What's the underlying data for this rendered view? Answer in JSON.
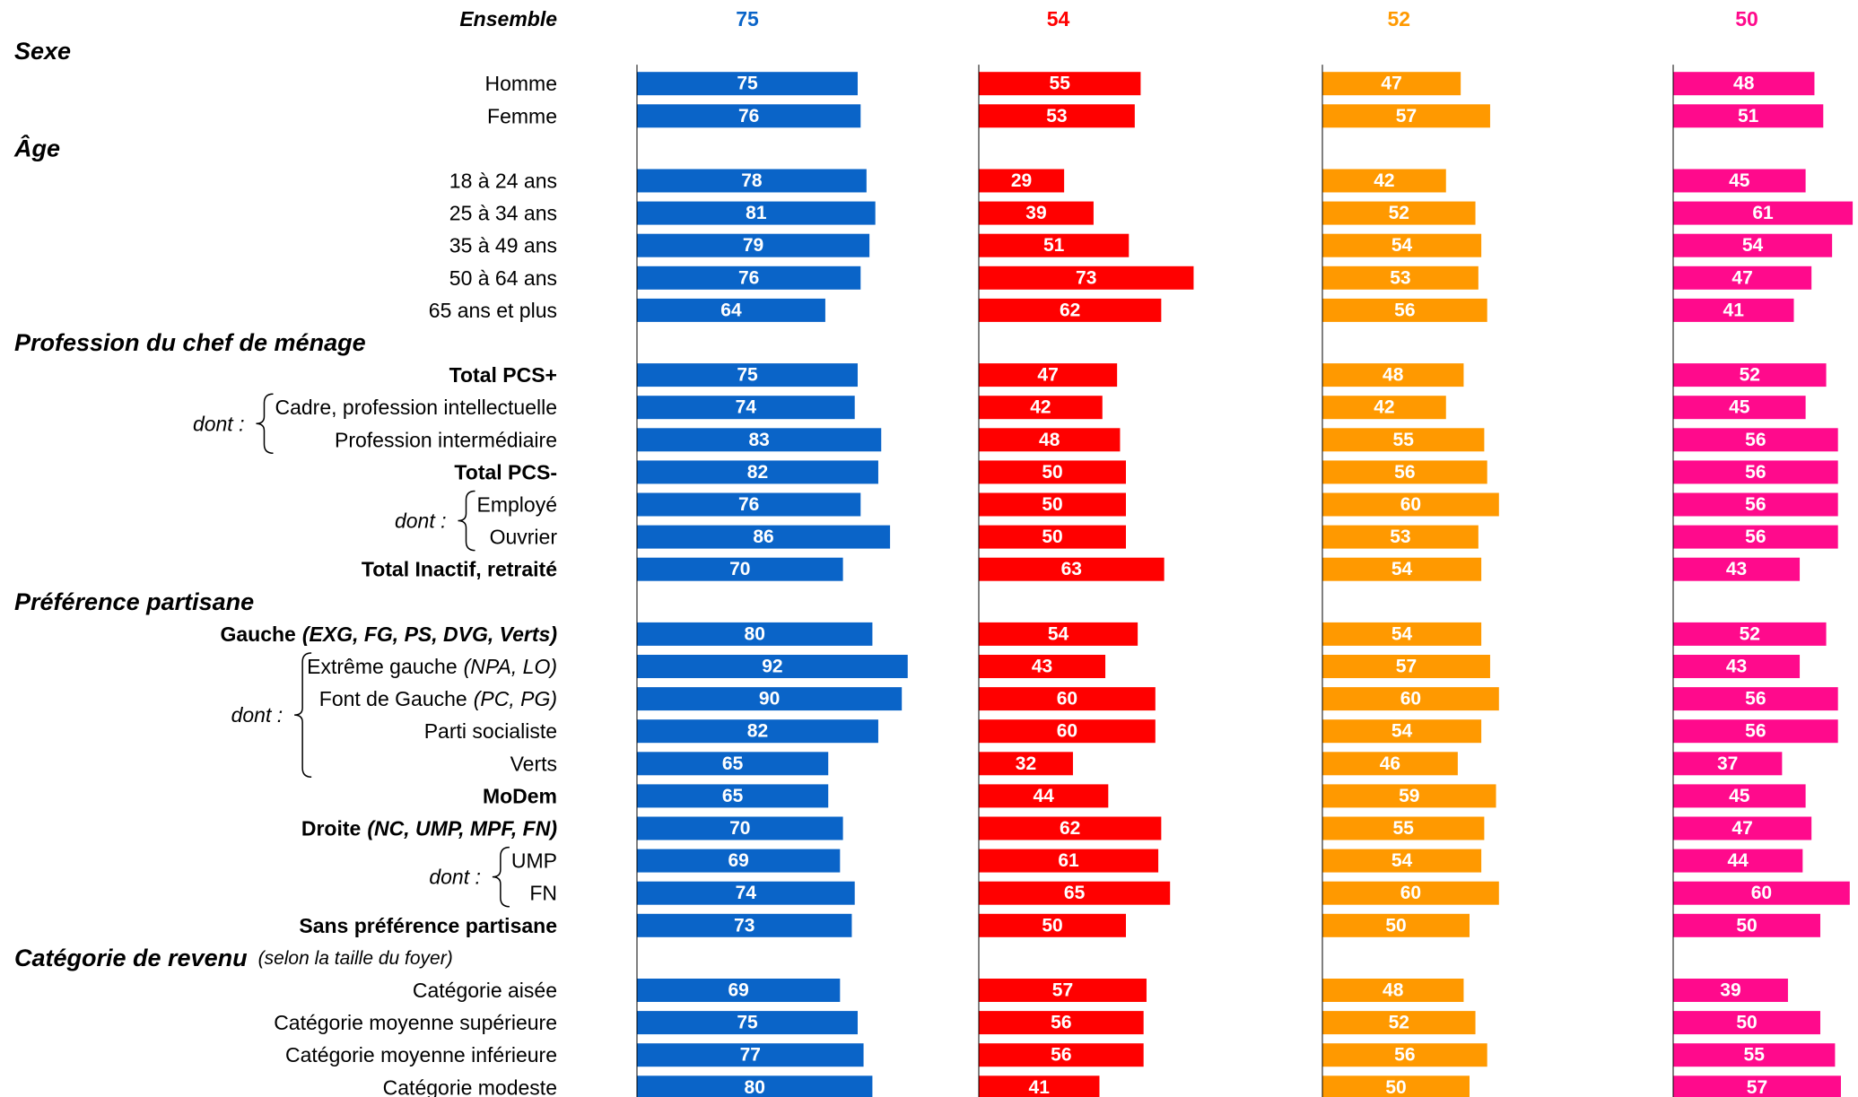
{
  "chart_data": {
    "type": "bar",
    "orientation": "horizontal",
    "total_label": "Ensemble",
    "groups": [
      {
        "title": "Sexe",
        "items": [
          {
            "label": "Homme"
          },
          {
            "label": "Femme"
          }
        ]
      },
      {
        "title": "Âge",
        "items": [
          {
            "label": "18 à 24 ans"
          },
          {
            "label": "25 à 34 ans"
          },
          {
            "label": "35 à 49 ans"
          },
          {
            "label": "50 à 64 ans"
          },
          {
            "label": "65 ans et plus"
          }
        ]
      },
      {
        "title": "Profession du chef de ménage",
        "items": [
          {
            "label": "Total PCS+",
            "bold": true
          },
          {
            "bracket": "dont :",
            "items": [
              {
                "label": "Cadre, profession intellectuelle"
              },
              {
                "label": "Profession intermédiaire"
              }
            ]
          },
          {
            "label": "Total PCS-",
            "bold": true
          },
          {
            "bracket": "dont :",
            "items": [
              {
                "label": "Employé"
              },
              {
                "label": "Ouvrier"
              }
            ]
          },
          {
            "label": "Total Inactif, retraité",
            "bold": true
          }
        ]
      },
      {
        "title": "Préférence partisane",
        "items": [
          {
            "label": "Gauche",
            "note": "(EXG, FG, PS, DVG, Verts)",
            "bold": true
          },
          {
            "bracket": "dont :",
            "items": [
              {
                "label": "Extrême gauche",
                "note": "(NPA, LO)"
              },
              {
                "label": "Font de Gauche",
                "note": "(PC, PG)"
              },
              {
                "label": "Parti socialiste"
              },
              {
                "label": "Verts"
              }
            ]
          },
          {
            "label": "MoDem",
            "bold": true
          },
          {
            "label": "Droite",
            "note": "(NC, UMP, MPF, FN)",
            "bold": true
          },
          {
            "bracket": "dont :",
            "items": [
              {
                "label": "UMP"
              },
              {
                "label": "FN"
              }
            ]
          },
          {
            "label": "Sans préférence partisane",
            "bold": true
          }
        ]
      },
      {
        "title": "Catégorie de revenu",
        "subtitle": "(selon la taille du foyer)",
        "items": [
          {
            "label": "Catégorie aisée"
          },
          {
            "label": "Catégorie moyenne supérieure"
          },
          {
            "label": "Catégorie moyenne inférieure"
          },
          {
            "label": "Catégorie modeste"
          }
        ]
      }
    ],
    "series": [
      {
        "color": "#0a64c8",
        "total": 75,
        "values": [
          75,
          76,
          78,
          81,
          79,
          76,
          64,
          75,
          74,
          83,
          82,
          76,
          86,
          70,
          80,
          92,
          90,
          82,
          65,
          65,
          70,
          69,
          74,
          73,
          69,
          75,
          77,
          80
        ]
      },
      {
        "color": "#ff0000",
        "total": 54,
        "values": [
          55,
          53,
          29,
          39,
          51,
          73,
          62,
          47,
          42,
          48,
          50,
          50,
          50,
          63,
          54,
          43,
          60,
          60,
          32,
          44,
          62,
          61,
          65,
          50,
          57,
          56,
          56,
          41
        ]
      },
      {
        "color": "#ff9900",
        "total": 52,
        "values": [
          47,
          57,
          42,
          52,
          54,
          53,
          56,
          48,
          42,
          55,
          56,
          60,
          53,
          54,
          54,
          57,
          60,
          54,
          46,
          59,
          55,
          54,
          60,
          50,
          48,
          52,
          56,
          50
        ]
      },
      {
        "color": "#ff0a8c",
        "total": 50,
        "values": [
          48,
          51,
          45,
          61,
          54,
          47,
          41,
          52,
          45,
          56,
          56,
          56,
          56,
          43,
          52,
          43,
          56,
          56,
          37,
          45,
          47,
          44,
          60,
          50,
          39,
          50,
          55,
          57
        ]
      }
    ]
  }
}
